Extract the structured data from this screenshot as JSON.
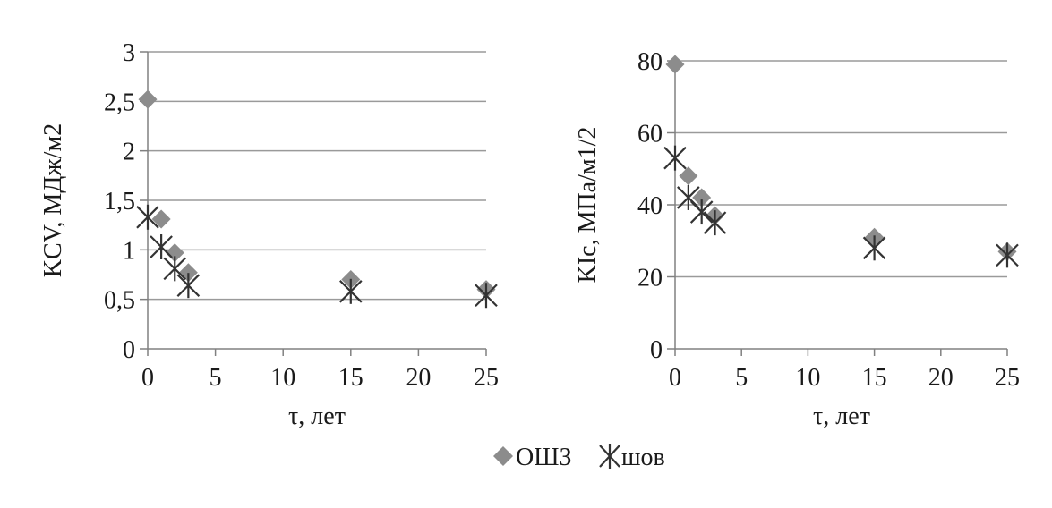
{
  "chart_data": [
    {
      "type": "scatter",
      "xlabel": "τ, лет",
      "ylabel": "KCV,  МДж/м2",
      "xlim": [
        0,
        25
      ],
      "ylim": [
        0,
        3
      ],
      "xticks": [
        "0",
        "5",
        "10",
        "15",
        "20",
        "25"
      ],
      "yticks": [
        "0",
        "0,5",
        "1",
        "1,5",
        "2",
        "2,5",
        "3"
      ],
      "grid": "horizontal",
      "series": [
        {
          "name": "ОШЗ",
          "marker": "diamond",
          "color": "#8c8c8c",
          "x": [
            0,
            1,
            2,
            3,
            15,
            25
          ],
          "y": [
            2.52,
            1.31,
            0.97,
            0.77,
            0.7,
            0.6
          ]
        },
        {
          "name": "шов",
          "marker": "asterisk",
          "color": "#333333",
          "x": [
            0,
            1,
            2,
            3,
            15,
            25
          ],
          "y": [
            1.33,
            1.03,
            0.81,
            0.64,
            0.58,
            0.54
          ]
        }
      ]
    },
    {
      "type": "scatter",
      "xlabel": "τ, лет",
      "ylabel": "KIc, МПа/м1/2",
      "xlim": [
        0,
        25
      ],
      "ylim": [
        0,
        80
      ],
      "xticks": [
        "0",
        "5",
        "10",
        "15",
        "20",
        "25"
      ],
      "yticks": [
        "0",
        "20",
        "40",
        "60",
        "80"
      ],
      "grid": "horizontal",
      "series": [
        {
          "name": "ОШЗ",
          "marker": "diamond",
          "color": "#8c8c8c",
          "x": [
            0,
            1,
            2,
            3,
            15,
            25
          ],
          "y": [
            79,
            48,
            42,
            37,
            31,
            27
          ]
        },
        {
          "name": "шов",
          "marker": "asterisk",
          "color": "#333333",
          "x": [
            0,
            1,
            2,
            3,
            15,
            25
          ],
          "y": [
            53,
            42,
            38,
            35,
            28,
            26
          ]
        }
      ]
    }
  ],
  "legend": {
    "placement": "bottom-center",
    "items": [
      {
        "label": "ОШЗ",
        "marker": "diamond",
        "color": "#8c8c8c"
      },
      {
        "label": "шов",
        "marker": "asterisk",
        "color": "#333333"
      }
    ]
  },
  "colors": {
    "grid": "#9a9a9a",
    "axis": "#808080",
    "text": "#1a1a1a"
  }
}
